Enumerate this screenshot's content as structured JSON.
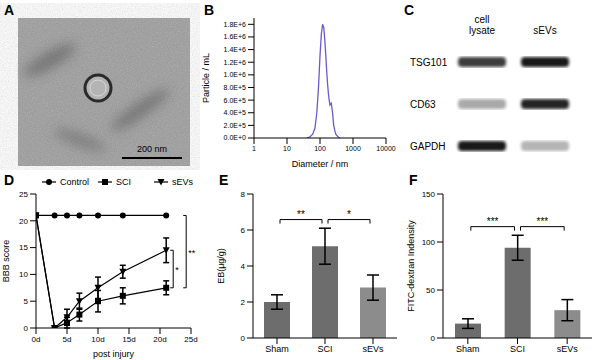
{
  "chart_data": [
    {
      "title": "A",
      "type": "image",
      "annotations": [
        {
          "text": "200 nm"
        }
      ]
    },
    {
      "title": "B",
      "type": "line",
      "x": [
        40,
        50,
        60,
        70,
        80,
        90,
        100,
        110,
        120,
        130,
        140,
        150,
        160,
        170,
        180,
        190,
        200,
        220,
        240,
        260,
        280,
        300,
        350,
        400
      ],
      "values": [
        0,
        20000,
        60000,
        150000,
        400000,
        800000,
        1300000,
        1650000,
        1800000,
        1750000,
        1550000,
        1300000,
        1050000,
        850000,
        700000,
        600000,
        520000,
        550000,
        400000,
        200000,
        120000,
        60000,
        20000,
        0
      ],
      "color": "#6a5acd",
      "log": "x",
      "xlim": [
        1,
        10000
      ],
      "xticks": [
        1,
        10,
        100,
        1000,
        10000
      ],
      "ylim": [
        0,
        1900000
      ],
      "yticks": [
        {
          "value": 0,
          "label": "0.0E+0"
        },
        {
          "value": 200000,
          "label": "2.0E+5"
        },
        {
          "value": 400000,
          "label": "4.0E+5"
        },
        {
          "value": 600000,
          "label": "6.0E+5"
        },
        {
          "value": 800000,
          "label": "8.0E+5"
        },
        {
          "value": 1000000,
          "label": "1.0E+6"
        },
        {
          "value": 1200000,
          "label": "1.2E+6"
        },
        {
          "value": 1400000,
          "label": "1.4E+6"
        },
        {
          "value": 1600000,
          "label": "1.6E+6"
        },
        {
          "value": 1800000,
          "label": "1.8E+6"
        }
      ],
      "xlabel": "Diameter / nm",
      "ylabel": "Particle / mL"
    },
    {
      "title": "C",
      "type": "blot",
      "columns": [
        "cell lysate",
        "sEVs"
      ],
      "rows": [
        "TSG101",
        "CD63",
        "GAPDH"
      ]
    },
    {
      "title": "D",
      "type": "line",
      "x": [
        0,
        3,
        5,
        7,
        10,
        14,
        21
      ],
      "xlim": [
        0,
        25
      ],
      "xticks": [
        {
          "value": 0,
          "label": "0d"
        },
        {
          "value": 5,
          "label": "5d"
        },
        {
          "value": 10,
          "label": "10d"
        },
        {
          "value": 15,
          "label": "15d"
        },
        {
          "value": 20,
          "label": "20d"
        },
        {
          "value": 25,
          "label": "25d"
        }
      ],
      "ylim": [
        0,
        25
      ],
      "yticks": [
        0,
        5,
        10,
        15,
        20,
        25
      ],
      "xlabel": "post injury",
      "ylabel": "BBB score",
      "legend": "top",
      "series": [
        {
          "name": "Control",
          "color": "#000000",
          "marker": "circle",
          "values": [
            21,
            21,
            21,
            21,
            21,
            21,
            21
          ]
        },
        {
          "name": "SCI",
          "color": "#000000",
          "marker": "square",
          "values": [
            21,
            0,
            1,
            2.5,
            5,
            6,
            7.5
          ],
          "errors": [
            0,
            0,
            1,
            1.2,
            2,
            1.5,
            1.3
          ]
        },
        {
          "name": "sEVs",
          "color": "#000000",
          "marker": "triangle",
          "values": [
            21,
            0,
            2,
            5,
            7.5,
            10.5,
            14.5
          ],
          "errors": [
            0,
            0,
            1.5,
            1.5,
            2,
            1.2,
            2.3
          ]
        }
      ],
      "annotations": [
        {
          "text": "*",
          "between": [
            "SCI",
            "sEVs"
          ]
        },
        {
          "text": "**",
          "between": [
            "SCI",
            "Control"
          ]
        }
      ]
    },
    {
      "title": "E",
      "type": "bar",
      "categories": [
        "Sham",
        "SCI",
        "sEVs"
      ],
      "values": [
        2,
        5.1,
        2.8
      ],
      "errors": [
        0.4,
        1,
        0.7
      ],
      "colors": [
        "#6d6d6d",
        "#6d6d6d",
        "#8c8c8c"
      ],
      "ylim": [
        0,
        8
      ],
      "yticks": [
        0,
        2,
        4,
        6,
        8
      ],
      "ylabel": "EB(μg/g)",
      "annotations": [
        {
          "text": "**",
          "between": [
            "Sham",
            "SCI"
          ]
        },
        {
          "text": "*",
          "between": [
            "SCI",
            "sEVs"
          ]
        }
      ]
    },
    {
      "title": "F",
      "type": "bar",
      "categories": [
        "Sham",
        "SCI",
        "sEVs"
      ],
      "values": [
        15,
        94,
        29
      ],
      "errors": [
        5,
        13,
        11
      ],
      "colors": [
        "#6d6d6d",
        "#6d6d6d",
        "#8c8c8c"
      ],
      "ylim": [
        0,
        150
      ],
      "yticks": [
        0,
        50,
        100,
        150
      ],
      "ylabel": "FITC-dextran Indensity",
      "annotations": [
        {
          "text": "***",
          "between": [
            "Sham",
            "SCI"
          ]
        },
        {
          "text": "***",
          "between": [
            "SCI",
            "sEVs"
          ]
        }
      ]
    }
  ]
}
